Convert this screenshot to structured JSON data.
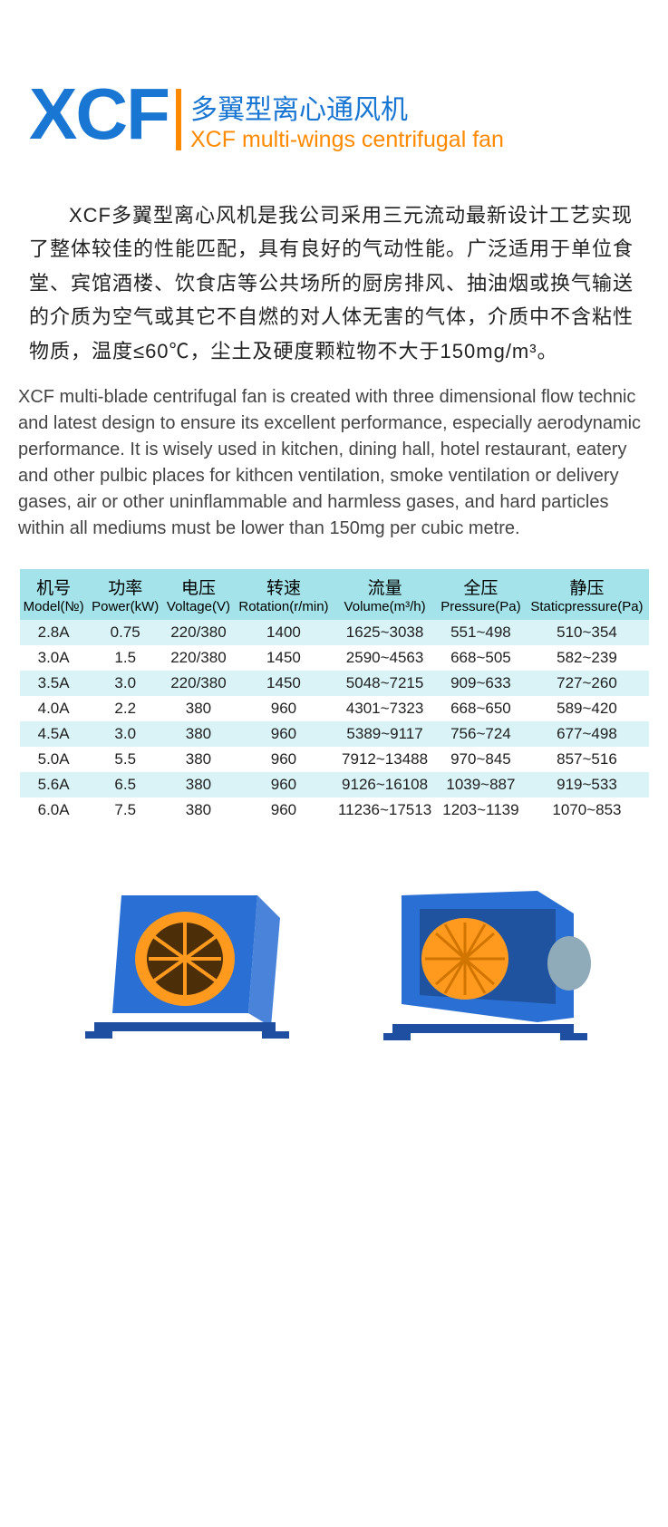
{
  "header": {
    "code": "XCF",
    "code_color": "#1976d2",
    "divider_color": "#ff8a00",
    "title_cn": "多翼型离心通风机",
    "title_cn_color": "#1976d2",
    "title_en": "XCF multi-wings centrifugal fan",
    "title_en_color": "#ff8a00"
  },
  "desc_cn": "XCF多翼型离心风机是我公司采用三元流动最新设计工艺实现了整体较佳的性能匹配，具有良好的气动性能。广泛适用于单位食堂、宾馆酒楼、饮食店等公共场所的厨房排风、抽油烟或换气输送的介质为空气或其它不自燃的对人体无害的气体，介质中不含粘性物质，温度≤60℃，尘土及硬度颗粒物不大于150mg/m³。",
  "desc_en": "XCF multi-blade centrifugal fan is created with three dimensional flow technic and latest design to ensure its excellent performance, especially aerodynamic performance. It is wisely used in kitchen, dining hall, hotel restaurant, eatery and other pulbic places for kithcen ventilation, smoke ventilation or delivery gases, air or other uninflammable and harmless gases, and hard particles within all mediums must be lower than 150mg per cubic metre.",
  "table": {
    "header_bg": "#a4e3e9",
    "odd_bg": "#d9f3f6",
    "even_bg": "#ffffff",
    "text_color": "#1f1f1f",
    "columns": [
      {
        "cn": "机号",
        "en": "Model(№)"
      },
      {
        "cn": "功率",
        "en": "Power(kW)"
      },
      {
        "cn": "电压",
        "en": "Voltage(V)"
      },
      {
        "cn": "转速",
        "en": "Rotation(r/min)"
      },
      {
        "cn": "流量",
        "en": "Volume(m³/h)"
      },
      {
        "cn": "全压",
        "en": "Pressure(Pa)"
      },
      {
        "cn": "静压",
        "en": "Staticpressure(Pa)"
      }
    ],
    "rows": [
      [
        "2.8A",
        "0.75",
        "220/380",
        "1400",
        "1625~3038",
        "551~498",
        "510~354"
      ],
      [
        "3.0A",
        "1.5",
        "220/380",
        "1450",
        "2590~4563",
        "668~505",
        "582~239"
      ],
      [
        "3.5A",
        "3.0",
        "220/380",
        "1450",
        "5048~7215",
        "909~633",
        "727~260"
      ],
      [
        "4.0A",
        "2.2",
        "380",
        "960",
        "4301~7323",
        "668~650",
        "589~420"
      ],
      [
        "4.5A",
        "3.0",
        "380",
        "960",
        "5389~9117",
        "756~724",
        "677~498"
      ],
      [
        "5.0A",
        "5.5",
        "380",
        "960",
        "7912~13488",
        "970~845",
        "857~516"
      ],
      [
        "5.6A",
        "6.5",
        "380",
        "960",
        "9126~16108",
        "1039~887",
        "919~533"
      ],
      [
        "6.0A",
        "7.5",
        "380",
        "960",
        "11236~17513",
        "1203~1139",
        "1070~853"
      ]
    ]
  },
  "images": {
    "housing_color": "#2a6fd4",
    "impeller_color": "#ff9a1f",
    "base_color": "#1e4fa0",
    "motor_color": "#8faab8"
  }
}
